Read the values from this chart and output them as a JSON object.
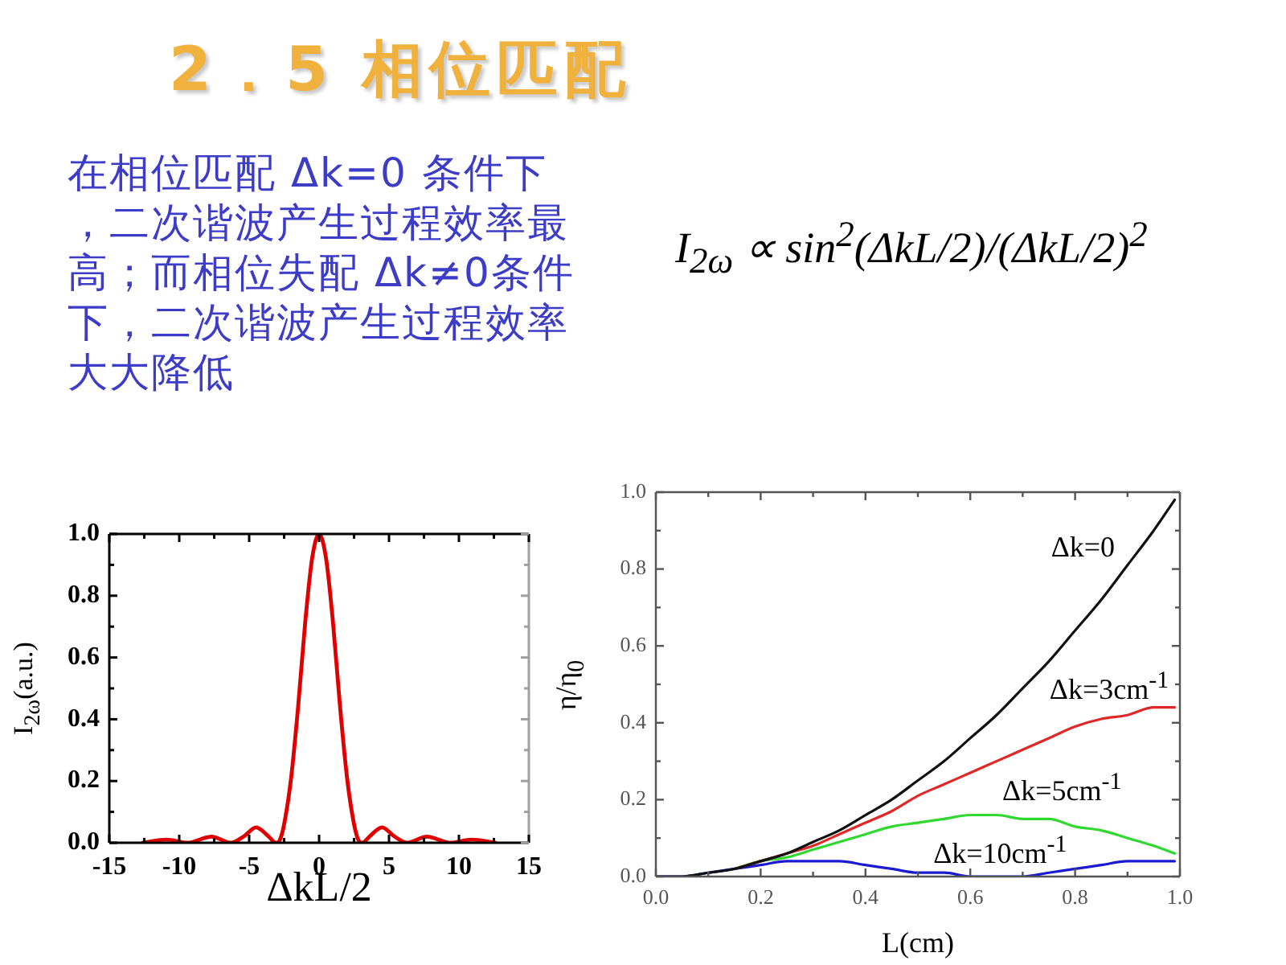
{
  "chart_data": [
    {
      "type": "line",
      "title": "2．5 相位匹配",
      "annotations": [
        "在相位匹配 Δk=0 条件下，二次谐波产生过程效率最高；而相位失配 Δk≠0条件下，二次谐波产生过程效率大大降低",
        "I$_{2ω}$ ∝ sin$^{2}$(ΔkL/2)/(ΔkL/2)$^{2}$"
      ],
      "xlabel": "ΔkL/2",
      "ylabel": "I$_{2ω}$(a.u.)",
      "x": [
        -12.6,
        -10.9,
        -9.4,
        -7.7,
        -6.3,
        -5.4,
        -4.5,
        -3.6,
        -3.1,
        -2.8,
        -2.5,
        -2,
        -1.5,
        -1,
        -0.5,
        0,
        0.5,
        1,
        1.5,
        2,
        2.5,
        2.8,
        3.1,
        3.6,
        4.5,
        5.4,
        6.3,
        7.7,
        9.4,
        10.9,
        12.6
      ],
      "series": [
        {
          "color": "#e00000",
          "values": [
            0,
            0.01,
            0,
            0.02,
            0,
            0.02,
            0.05,
            0.02,
            0,
            0.01,
            0.06,
            0.21,
            0.44,
            0.71,
            0.92,
            1,
            0.92,
            0.71,
            0.44,
            0.21,
            0.06,
            0.01,
            0,
            0.02,
            0.05,
            0.02,
            0,
            0.02,
            0,
            0.01,
            0
          ]
        }
      ],
      "xlim": [
        -15,
        15
      ],
      "xticks": [
        -15,
        {
          "value": -12.5,
          "label": null
        },
        -10,
        {
          "value": -7.5,
          "label": null
        },
        -5,
        {
          "value": -2.5,
          "label": null
        },
        0,
        {
          "value": 2.5,
          "label": null
        },
        5,
        {
          "value": 7.5,
          "label": null
        },
        10,
        {
          "value": 12.5,
          "label": null
        },
        15
      ],
      "ylim": [
        0,
        1
      ],
      "yticks": [
        {
          "value": 0,
          "label": "0.0"
        },
        {
          "value": 0.1,
          "label": null
        },
        {
          "value": 0.2,
          "label": "0.2"
        },
        {
          "value": 0.3,
          "label": null
        },
        {
          "value": 0.4,
          "label": "0.4"
        },
        {
          "value": 0.5,
          "label": null
        },
        {
          "value": 0.6,
          "label": "0.6"
        },
        {
          "value": 0.7,
          "label": null
        },
        {
          "value": 0.8,
          "label": "0.8"
        },
        {
          "value": 0.9,
          "label": null
        },
        {
          "value": 1,
          "label": "1.0"
        }
      ]
    },
    {
      "type": "line",
      "xlabel": "L(cm)",
      "ylabel": "η/η$_{0}$",
      "x": [
        0,
        0.05,
        0.1,
        0.15,
        0.2,
        0.25,
        0.3,
        0.35,
        0.4,
        0.45,
        0.5,
        0.55,
        0.6,
        0.65,
        0.7,
        0.75,
        0.8,
        0.85,
        0.9,
        0.95,
        0.99
      ],
      "series": [
        {
          "name": "Δk=0",
          "color": "#111111",
          "values": [
            0,
            0,
            0.01,
            0.02,
            0.04,
            0.06,
            0.09,
            0.12,
            0.16,
            0.2,
            0.25,
            0.3,
            0.36,
            0.42,
            0.49,
            0.56,
            0.64,
            0.72,
            0.81,
            0.9,
            0.98
          ]
        },
        {
          "name": "Δk=3cm$^{-1}$",
          "color": "#e02828",
          "values": [
            null,
            null,
            null,
            0.02,
            0.04,
            0.06,
            0.08,
            0.11,
            0.14,
            0.17,
            0.21,
            0.24,
            0.27,
            0.3,
            0.33,
            0.36,
            0.39,
            0.41,
            0.42,
            0.44,
            0.44
          ]
        },
        {
          "name": "Δk=5cm$^{-1}$",
          "color": "#30d830",
          "values": [
            null,
            null,
            null,
            0.02,
            0.04,
            0.05,
            0.07,
            0.09,
            0.11,
            0.13,
            0.14,
            0.15,
            0.16,
            0.16,
            0.15,
            0.15,
            0.13,
            0.12,
            0.1,
            0.08,
            0.06
          ]
        },
        {
          "name": "Δk=10cm$^{-1}$",
          "color": "#1a1ad0",
          "values": [
            0,
            0,
            0.01,
            0.02,
            0.03,
            0.04,
            0.04,
            0.04,
            0.03,
            0.02,
            0.01,
            0.01,
            0,
            0,
            0,
            0.01,
            0.02,
            0.03,
            0.04,
            0.04,
            0.04
          ]
        }
      ],
      "xlim": [
        0,
        1
      ],
      "xticks": [
        {
          "value": 0,
          "label": "0.0"
        },
        {
          "value": 0.1,
          "label": null
        },
        {
          "value": 0.2,
          "label": "0.2"
        },
        {
          "value": 0.3,
          "label": null
        },
        {
          "value": 0.4,
          "label": "0.4"
        },
        {
          "value": 0.5,
          "label": null
        },
        {
          "value": 0.6,
          "label": "0.6"
        },
        {
          "value": 0.7,
          "label": null
        },
        {
          "value": 0.8,
          "label": "0.8"
        },
        {
          "value": 0.9,
          "label": null
        },
        {
          "value": 1,
          "label": "1.0"
        }
      ],
      "ylim": [
        0,
        1
      ],
      "yticks": [
        {
          "value": 0,
          "label": "0.0"
        },
        {
          "value": 0.1,
          "label": null
        },
        {
          "value": 0.2,
          "label": "0.2"
        },
        {
          "value": 0.3,
          "label": null
        },
        {
          "value": 0.4,
          "label": "0.4"
        },
        {
          "value": 0.5,
          "label": null
        },
        {
          "value": 0.6,
          "label": "0.6"
        },
        {
          "value": 0.7,
          "label": null
        },
        {
          "value": 0.8,
          "label": "0.8"
        },
        {
          "value": 0.9,
          "label": null
        },
        {
          "value": 1,
          "label": "1.0"
        }
      ]
    }
  ]
}
